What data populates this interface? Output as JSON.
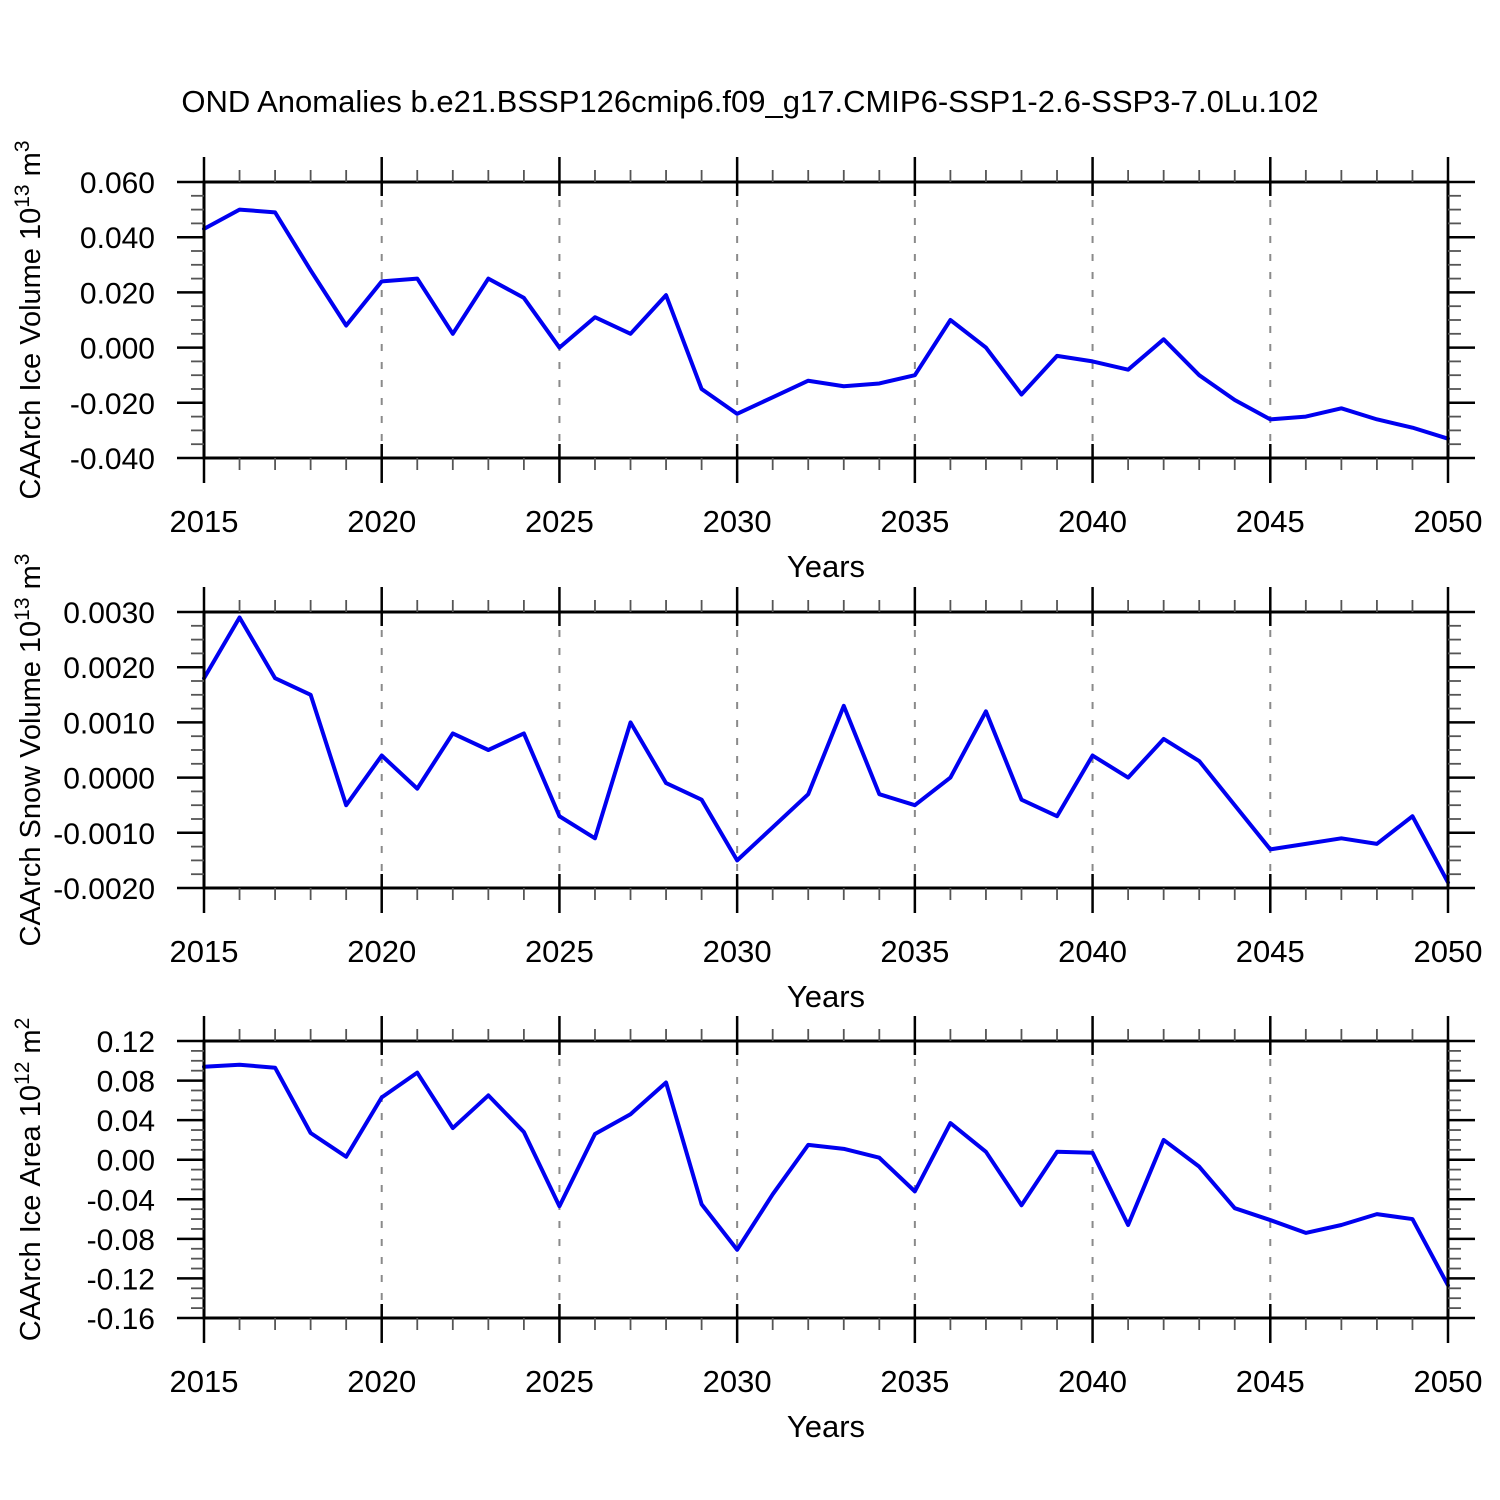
{
  "title": "OND Anomalies b.e21.BSSP126cmip6.f09_g17.CMIP6-SSP1-2.6-SSP3-7.0Lu.102",
  "colors": {
    "line": "#0000F0",
    "grid": "#8a8a8a",
    "frame": "#000000",
    "minor_tick": "#555555",
    "text": "#000000",
    "background": "#ffffff"
  },
  "chart_data": {
    "type": "line",
    "title": "OND Anomalies b.e21.BSSP126cmip6.f09_g17.CMIP6-SSP1-2.6-SSP3-7.0Lu.102",
    "legend": "none",
    "grid": "vertical-dashed-at-5yr-majors",
    "years": [
      2015,
      2016,
      2017,
      2018,
      2019,
      2020,
      2021,
      2022,
      2023,
      2024,
      2025,
      2026,
      2027,
      2028,
      2029,
      2030,
      2031,
      2032,
      2033,
      2034,
      2035,
      2036,
      2037,
      2038,
      2039,
      2040,
      2041,
      2042,
      2043,
      2044,
      2045,
      2046,
      2047,
      2048,
      2049,
      2050
    ],
    "panels": [
      {
        "name": "ice-volume",
        "ylabel": "CAArch Ice Volume 10^13 m^3",
        "xlabel": "Years",
        "x_start": 2015,
        "x_end": 2050,
        "x_major": 5,
        "x_minor": 1,
        "ylim": [
          -0.04,
          0.06
        ],
        "y_major": 0.02,
        "y_minor": 0.005,
        "y_decimals": 3,
        "values": [
          0.043,
          0.05,
          0.049,
          0.028,
          0.008,
          0.024,
          0.025,
          0.005,
          0.025,
          0.018,
          0.0,
          0.011,
          0.005,
          0.019,
          -0.015,
          -0.024,
          -0.018,
          -0.012,
          -0.014,
          -0.013,
          -0.01,
          0.01,
          0.0,
          -0.017,
          -0.003,
          -0.005,
          -0.008,
          0.003,
          -0.01,
          -0.019,
          -0.026,
          -0.025,
          -0.022,
          -0.026,
          -0.029,
          -0.033
        ]
      },
      {
        "name": "snow-volume",
        "ylabel": "CAArch Snow Volume 10^13 m^3",
        "xlabel": "Years",
        "x_start": 2015,
        "x_end": 2050,
        "x_major": 5,
        "x_minor": 1,
        "ylim": [
          -0.002,
          0.003
        ],
        "y_major": 0.001,
        "y_minor": 0.00025,
        "y_decimals": 4,
        "values": [
          0.0018,
          0.0029,
          0.0018,
          0.0015,
          -0.0005,
          0.0004,
          -0.0002,
          0.0008,
          0.0005,
          0.0008,
          -0.0007,
          -0.0011,
          0.001,
          -0.0001,
          -0.0004,
          -0.0015,
          -0.0009,
          -0.0003,
          0.0013,
          -0.0003,
          -0.0005,
          0.0,
          0.0012,
          -0.0004,
          -0.0007,
          0.0004,
          0.0,
          0.0007,
          0.0003,
          -0.0005,
          -0.0013,
          -0.0012,
          -0.0011,
          -0.0012,
          -0.0007,
          -0.0019
        ]
      },
      {
        "name": "ice-area",
        "ylabel": "CAArch Ice Area 10^12 m^2",
        "xlabel": "Years",
        "x_start": 2015,
        "x_end": 2050,
        "x_major": 5,
        "x_minor": 1,
        "ylim": [
          -0.16,
          0.12
        ],
        "y_major": 0.04,
        "y_minor": 0.01,
        "y_decimals": 2,
        "values": [
          0.094,
          0.096,
          0.093,
          0.027,
          0.003,
          0.063,
          0.088,
          0.032,
          0.065,
          0.028,
          -0.047,
          0.026,
          0.046,
          0.078,
          -0.045,
          -0.091,
          -0.035,
          0.015,
          0.011,
          0.002,
          -0.032,
          0.037,
          0.008,
          -0.046,
          0.008,
          0.007,
          -0.066,
          0.02,
          -0.007,
          -0.049,
          -0.061,
          -0.074,
          -0.066,
          -0.055,
          -0.06,
          -0.127
        ]
      }
    ]
  }
}
